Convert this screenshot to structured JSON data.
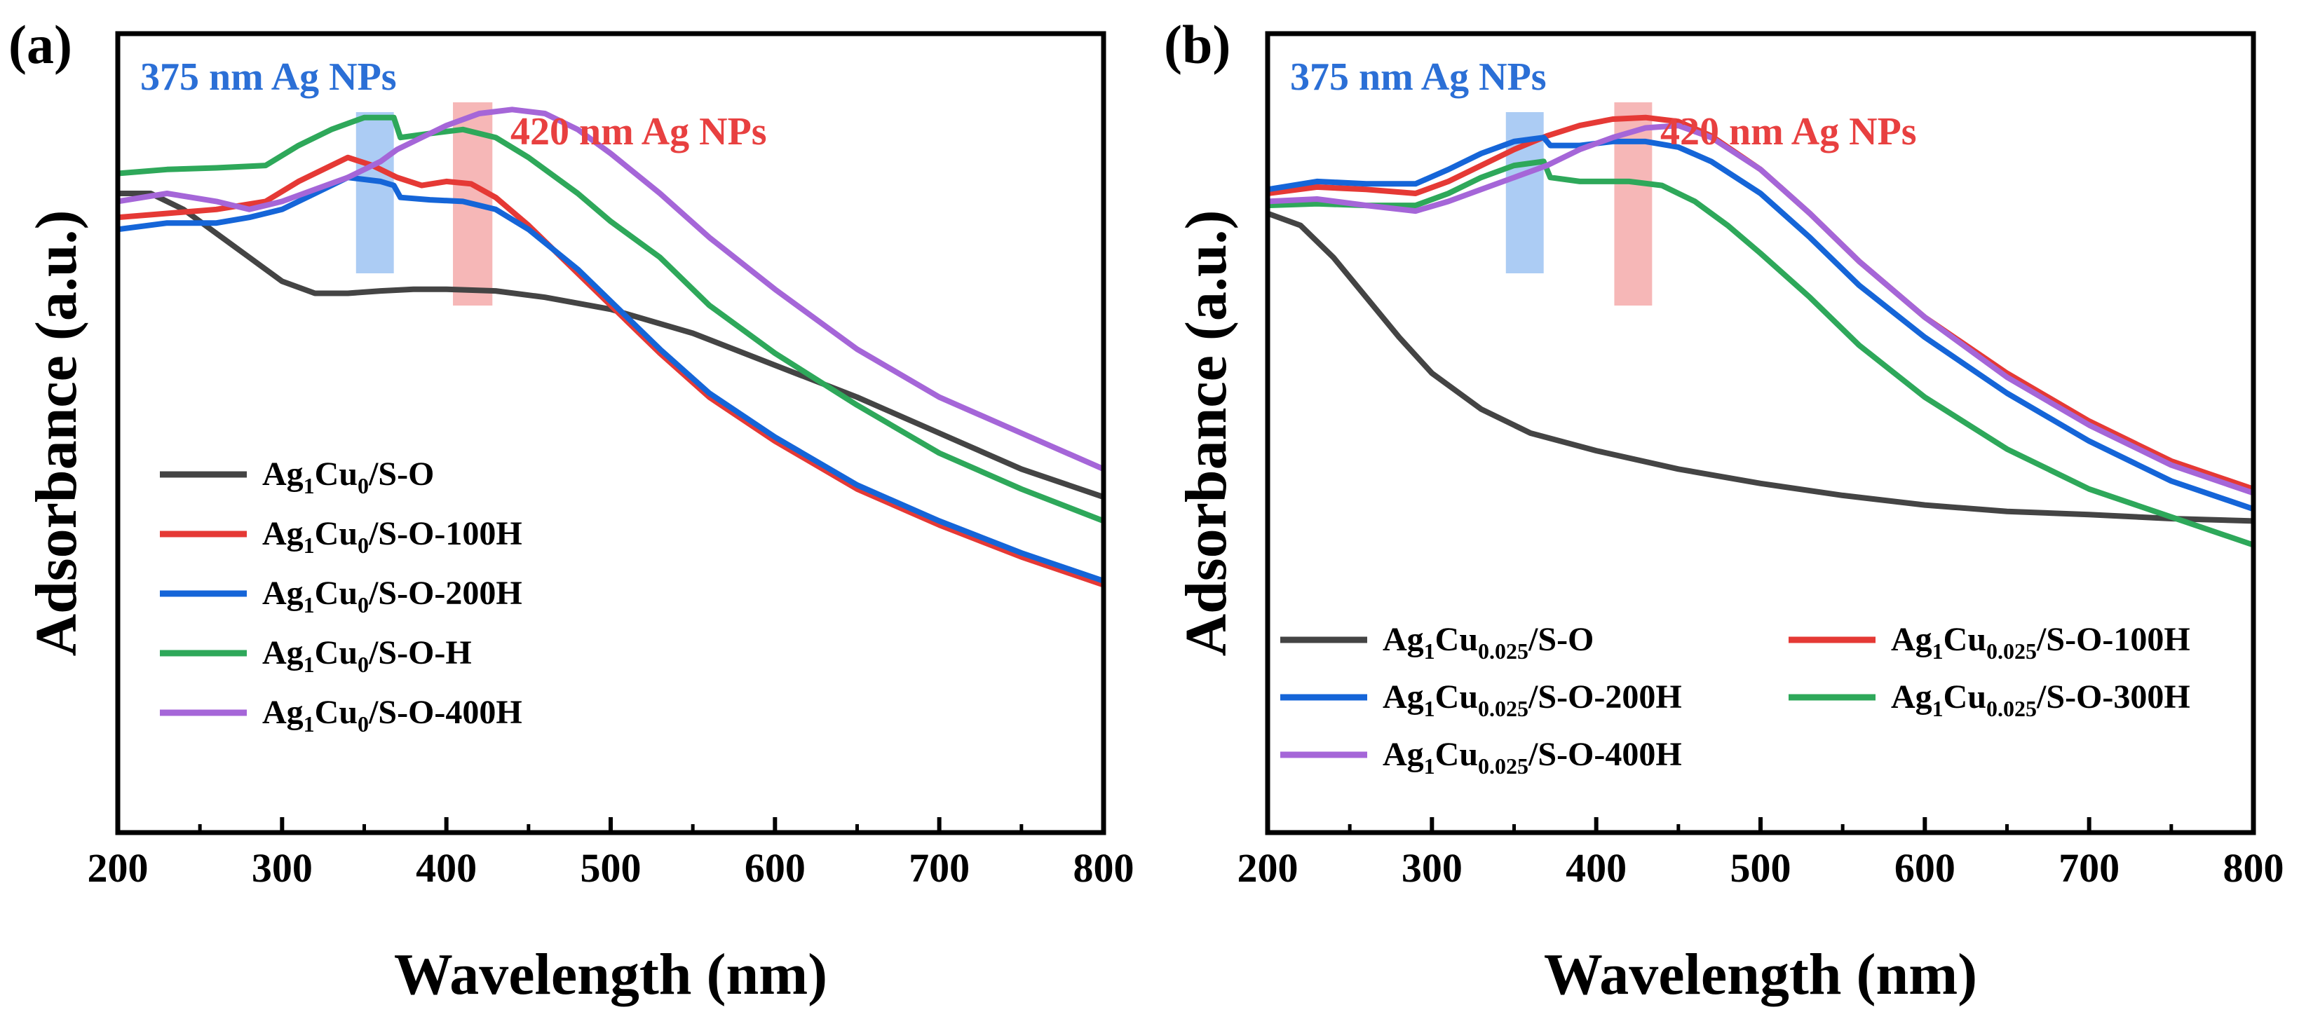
{
  "chart_data": [
    {
      "type": "line",
      "panel": "(a)",
      "xlabel": "Wavelength (nm)",
      "ylabel": "Adsorbance (a.u.)",
      "xlim": [
        200,
        800
      ],
      "ylim": [
        0,
        1
      ],
      "x_ticks": [
        200,
        300,
        400,
        500,
        600,
        700,
        800
      ],
      "y_ticks_labeled": false,
      "grid": false,
      "legend_position": "lower-left",
      "annotations": [
        {
          "text": "375 nm Ag NPs",
          "color": "#2b6fd6",
          "band_x": [
            345,
            368
          ],
          "band_color": "#9ec3f2"
        },
        {
          "text": "420 nm Ag NPs",
          "color": "#e84040",
          "band_x": [
            404,
            428
          ],
          "band_color": "#f5aaaa"
        }
      ],
      "series": [
        {
          "name": "Ag1Cu0/S-O",
          "legend": {
            "base": "Ag",
            "sub1": "1",
            "mid": "Cu",
            "sub2": "0",
            "tail": "/S-O"
          },
          "color": "#444444",
          "points": [
            [
              200,
              0.8
            ],
            [
              220,
              0.8
            ],
            [
              240,
              0.78
            ],
            [
              260,
              0.75
            ],
            [
              280,
              0.72
            ],
            [
              300,
              0.69
            ],
            [
              320,
              0.675
            ],
            [
              340,
              0.675
            ],
            [
              360,
              0.678
            ],
            [
              380,
              0.68
            ],
            [
              400,
              0.68
            ],
            [
              430,
              0.678
            ],
            [
              460,
              0.67
            ],
            [
              500,
              0.655
            ],
            [
              550,
              0.625
            ],
            [
              600,
              0.585
            ],
            [
              650,
              0.545
            ],
            [
              700,
              0.5
            ],
            [
              750,
              0.455
            ],
            [
              800,
              0.42
            ]
          ]
        },
        {
          "name": "Ag1Cu0/S-O-100H",
          "legend": {
            "base": "Ag",
            "sub1": "1",
            "mid": "Cu",
            "sub2": "0",
            "tail": "/S-O-100H"
          },
          "color": "#e53935",
          "points": [
            [
              200,
              0.77
            ],
            [
              230,
              0.775
            ],
            [
              260,
              0.78
            ],
            [
              290,
              0.79
            ],
            [
              310,
              0.815
            ],
            [
              330,
              0.835
            ],
            [
              340,
              0.845
            ],
            [
              355,
              0.835
            ],
            [
              370,
              0.82
            ],
            [
              385,
              0.81
            ],
            [
              400,
              0.815
            ],
            [
              415,
              0.812
            ],
            [
              430,
              0.795
            ],
            [
              450,
              0.76
            ],
            [
              480,
              0.7
            ],
            [
              500,
              0.66
            ],
            [
              530,
              0.6
            ],
            [
              560,
              0.545
            ],
            [
              600,
              0.49
            ],
            [
              650,
              0.43
            ],
            [
              700,
              0.385
            ],
            [
              750,
              0.345
            ],
            [
              800,
              0.31
            ]
          ]
        },
        {
          "name": "Ag1Cu0/S-O-200H",
          "legend": {
            "base": "Ag",
            "sub1": "1",
            "mid": "Cu",
            "sub2": "0",
            "tail": "/S-O-200H"
          },
          "color": "#1565d8",
          "points": [
            [
              200,
              0.755
            ],
            [
              230,
              0.763
            ],
            [
              260,
              0.763
            ],
            [
              280,
              0.77
            ],
            [
              300,
              0.78
            ],
            [
              320,
              0.8
            ],
            [
              340,
              0.82
            ],
            [
              360,
              0.815
            ],
            [
              368,
              0.81
            ],
            [
              372,
              0.795
            ],
            [
              390,
              0.792
            ],
            [
              410,
              0.79
            ],
            [
              430,
              0.78
            ],
            [
              450,
              0.755
            ],
            [
              480,
              0.705
            ],
            [
              500,
              0.665
            ],
            [
              530,
              0.605
            ],
            [
              560,
              0.55
            ],
            [
              600,
              0.495
            ],
            [
              650,
              0.435
            ],
            [
              700,
              0.39
            ],
            [
              750,
              0.35
            ],
            [
              800,
              0.315
            ]
          ]
        },
        {
          "name": "Ag1Cu0/S-O-H",
          "legend": {
            "base": "Ag",
            "sub1": "1",
            "mid": "Cu",
            "sub2": "0",
            "tail": "/S-O-H"
          },
          "color": "#2ea85a",
          "points": [
            [
              200,
              0.825
            ],
            [
              230,
              0.83
            ],
            [
              260,
              0.832
            ],
            [
              290,
              0.835
            ],
            [
              310,
              0.86
            ],
            [
              330,
              0.88
            ],
            [
              350,
              0.895
            ],
            [
              368,
              0.895
            ],
            [
              372,
              0.87
            ],
            [
              390,
              0.875
            ],
            [
              410,
              0.88
            ],
            [
              430,
              0.87
            ],
            [
              450,
              0.845
            ],
            [
              480,
              0.8
            ],
            [
              500,
              0.765
            ],
            [
              530,
              0.72
            ],
            [
              560,
              0.66
            ],
            [
              600,
              0.6
            ],
            [
              650,
              0.535
            ],
            [
              700,
              0.475
            ],
            [
              750,
              0.43
            ],
            [
              800,
              0.39
            ]
          ]
        },
        {
          "name": "Ag1Cu0/S-O-400H",
          "legend": {
            "base": "Ag",
            "sub1": "1",
            "mid": "Cu",
            "sub2": "0",
            "tail": "/S-O-400H"
          },
          "color": "#a566d8",
          "points": [
            [
              200,
              0.79
            ],
            [
              230,
              0.8
            ],
            [
              260,
              0.79
            ],
            [
              280,
              0.78
            ],
            [
              300,
              0.79
            ],
            [
              320,
              0.805
            ],
            [
              340,
              0.82
            ],
            [
              360,
              0.84
            ],
            [
              370,
              0.855
            ],
            [
              385,
              0.87
            ],
            [
              400,
              0.885
            ],
            [
              420,
              0.9
            ],
            [
              440,
              0.905
            ],
            [
              460,
              0.9
            ],
            [
              480,
              0.88
            ],
            [
              500,
              0.85
            ],
            [
              530,
              0.8
            ],
            [
              560,
              0.745
            ],
            [
              600,
              0.68
            ],
            [
              650,
              0.605
            ],
            [
              700,
              0.545
            ],
            [
              750,
              0.5
            ],
            [
              800,
              0.455
            ]
          ]
        }
      ]
    },
    {
      "type": "line",
      "panel": "(b)",
      "xlabel": "Wavelength (nm)",
      "ylabel": "Adsorbance (a.u.)",
      "xlim": [
        200,
        800
      ],
      "ylim": [
        0,
        1
      ],
      "x_ticks": [
        200,
        300,
        400,
        500,
        600,
        700,
        800
      ],
      "y_ticks_labeled": false,
      "grid": false,
      "legend_position": "lower-center",
      "annotations": [
        {
          "text": "375 nm Ag NPs",
          "color": "#2b6fd6",
          "band_x": [
            345,
            368
          ],
          "band_color": "#9ec3f2"
        },
        {
          "text": "420 nm Ag NPs",
          "color": "#e84040",
          "band_x": [
            411,
            434
          ],
          "band_color": "#f5aaaa"
        }
      ],
      "series": [
        {
          "name": "Ag1Cu0.025/S-O",
          "legend": {
            "base": "Ag",
            "sub1": "1",
            "mid": "Cu",
            "sub2": "0.025",
            "tail": "/S-O"
          },
          "color": "#444444",
          "points": [
            [
              200,
              0.775
            ],
            [
              220,
              0.76
            ],
            [
              240,
              0.72
            ],
            [
              260,
              0.67
            ],
            [
              280,
              0.62
            ],
            [
              300,
              0.575
            ],
            [
              330,
              0.53
            ],
            [
              360,
              0.5
            ],
            [
              400,
              0.478
            ],
            [
              450,
              0.455
            ],
            [
              500,
              0.437
            ],
            [
              550,
              0.422
            ],
            [
              600,
              0.41
            ],
            [
              650,
              0.402
            ],
            [
              700,
              0.398
            ],
            [
              750,
              0.393
            ],
            [
              800,
              0.39
            ]
          ]
        },
        {
          "name": "Ag1Cu0.025/S-O-100H",
          "legend": {
            "base": "Ag",
            "sub1": "1",
            "mid": "Cu",
            "sub2": "0.025",
            "tail": "/S-O-100H"
          },
          "color": "#e53935",
          "points": [
            [
              200,
              0.8
            ],
            [
              230,
              0.808
            ],
            [
              260,
              0.805
            ],
            [
              290,
              0.8
            ],
            [
              310,
              0.815
            ],
            [
              330,
              0.835
            ],
            [
              350,
              0.855
            ],
            [
              370,
              0.872
            ],
            [
              390,
              0.885
            ],
            [
              410,
              0.893
            ],
            [
              430,
              0.895
            ],
            [
              450,
              0.89
            ],
            [
              470,
              0.872
            ],
            [
              500,
              0.83
            ],
            [
              530,
              0.775
            ],
            [
              560,
              0.715
            ],
            [
              600,
              0.645
            ],
            [
              650,
              0.575
            ],
            [
              700,
              0.515
            ],
            [
              750,
              0.465
            ],
            [
              800,
              0.43
            ]
          ]
        },
        {
          "name": "Ag1Cu0.025/S-O-200H",
          "legend": {
            "base": "Ag",
            "sub1": "1",
            "mid": "Cu",
            "sub2": "0.025",
            "tail": "/S-O-200H"
          },
          "color": "#1565d8",
          "points": [
            [
              200,
              0.805
            ],
            [
              230,
              0.815
            ],
            [
              260,
              0.812
            ],
            [
              290,
              0.812
            ],
            [
              310,
              0.83
            ],
            [
              330,
              0.85
            ],
            [
              350,
              0.865
            ],
            [
              368,
              0.87
            ],
            [
              372,
              0.86
            ],
            [
              390,
              0.86
            ],
            [
              410,
              0.865
            ],
            [
              430,
              0.865
            ],
            [
              450,
              0.858
            ],
            [
              470,
              0.84
            ],
            [
              500,
              0.8
            ],
            [
              530,
              0.745
            ],
            [
              560,
              0.685
            ],
            [
              600,
              0.62
            ],
            [
              650,
              0.55
            ],
            [
              700,
              0.49
            ],
            [
              750,
              0.44
            ],
            [
              800,
              0.405
            ]
          ]
        },
        {
          "name": "Ag1Cu0.025/S-O-300H",
          "legend": {
            "base": "Ag",
            "sub1": "1",
            "mid": "Cu",
            "sub2": "0.025",
            "tail": "/S-O-300H"
          },
          "color": "#2ea85a",
          "points": [
            [
              200,
              0.785
            ],
            [
              230,
              0.787
            ],
            [
              260,
              0.785
            ],
            [
              290,
              0.785
            ],
            [
              310,
              0.8
            ],
            [
              330,
              0.82
            ],
            [
              350,
              0.835
            ],
            [
              368,
              0.84
            ],
            [
              372,
              0.82
            ],
            [
              390,
              0.815
            ],
            [
              420,
              0.815
            ],
            [
              440,
              0.81
            ],
            [
              460,
              0.79
            ],
            [
              480,
              0.76
            ],
            [
              500,
              0.725
            ],
            [
              530,
              0.67
            ],
            [
              560,
              0.61
            ],
            [
              600,
              0.545
            ],
            [
              650,
              0.48
            ],
            [
              700,
              0.43
            ],
            [
              750,
              0.395
            ],
            [
              800,
              0.36
            ]
          ]
        },
        {
          "name": "Ag1Cu0.025/S-O-400H",
          "legend": {
            "base": "Ag",
            "sub1": "1",
            "mid": "Cu",
            "sub2": "0.025",
            "tail": "/S-O-400H"
          },
          "color": "#a566d8",
          "points": [
            [
              200,
              0.79
            ],
            [
              230,
              0.793
            ],
            [
              260,
              0.785
            ],
            [
              290,
              0.778
            ],
            [
              310,
              0.79
            ],
            [
              330,
              0.805
            ],
            [
              350,
              0.82
            ],
            [
              370,
              0.835
            ],
            [
              390,
              0.855
            ],
            [
              410,
              0.87
            ],
            [
              430,
              0.882
            ],
            [
              450,
              0.885
            ],
            [
              470,
              0.87
            ],
            [
              500,
              0.83
            ],
            [
              530,
              0.775
            ],
            [
              560,
              0.715
            ],
            [
              600,
              0.645
            ],
            [
              650,
              0.57
            ],
            [
              700,
              0.51
            ],
            [
              750,
              0.46
            ],
            [
              800,
              0.425
            ]
          ]
        }
      ]
    }
  ]
}
